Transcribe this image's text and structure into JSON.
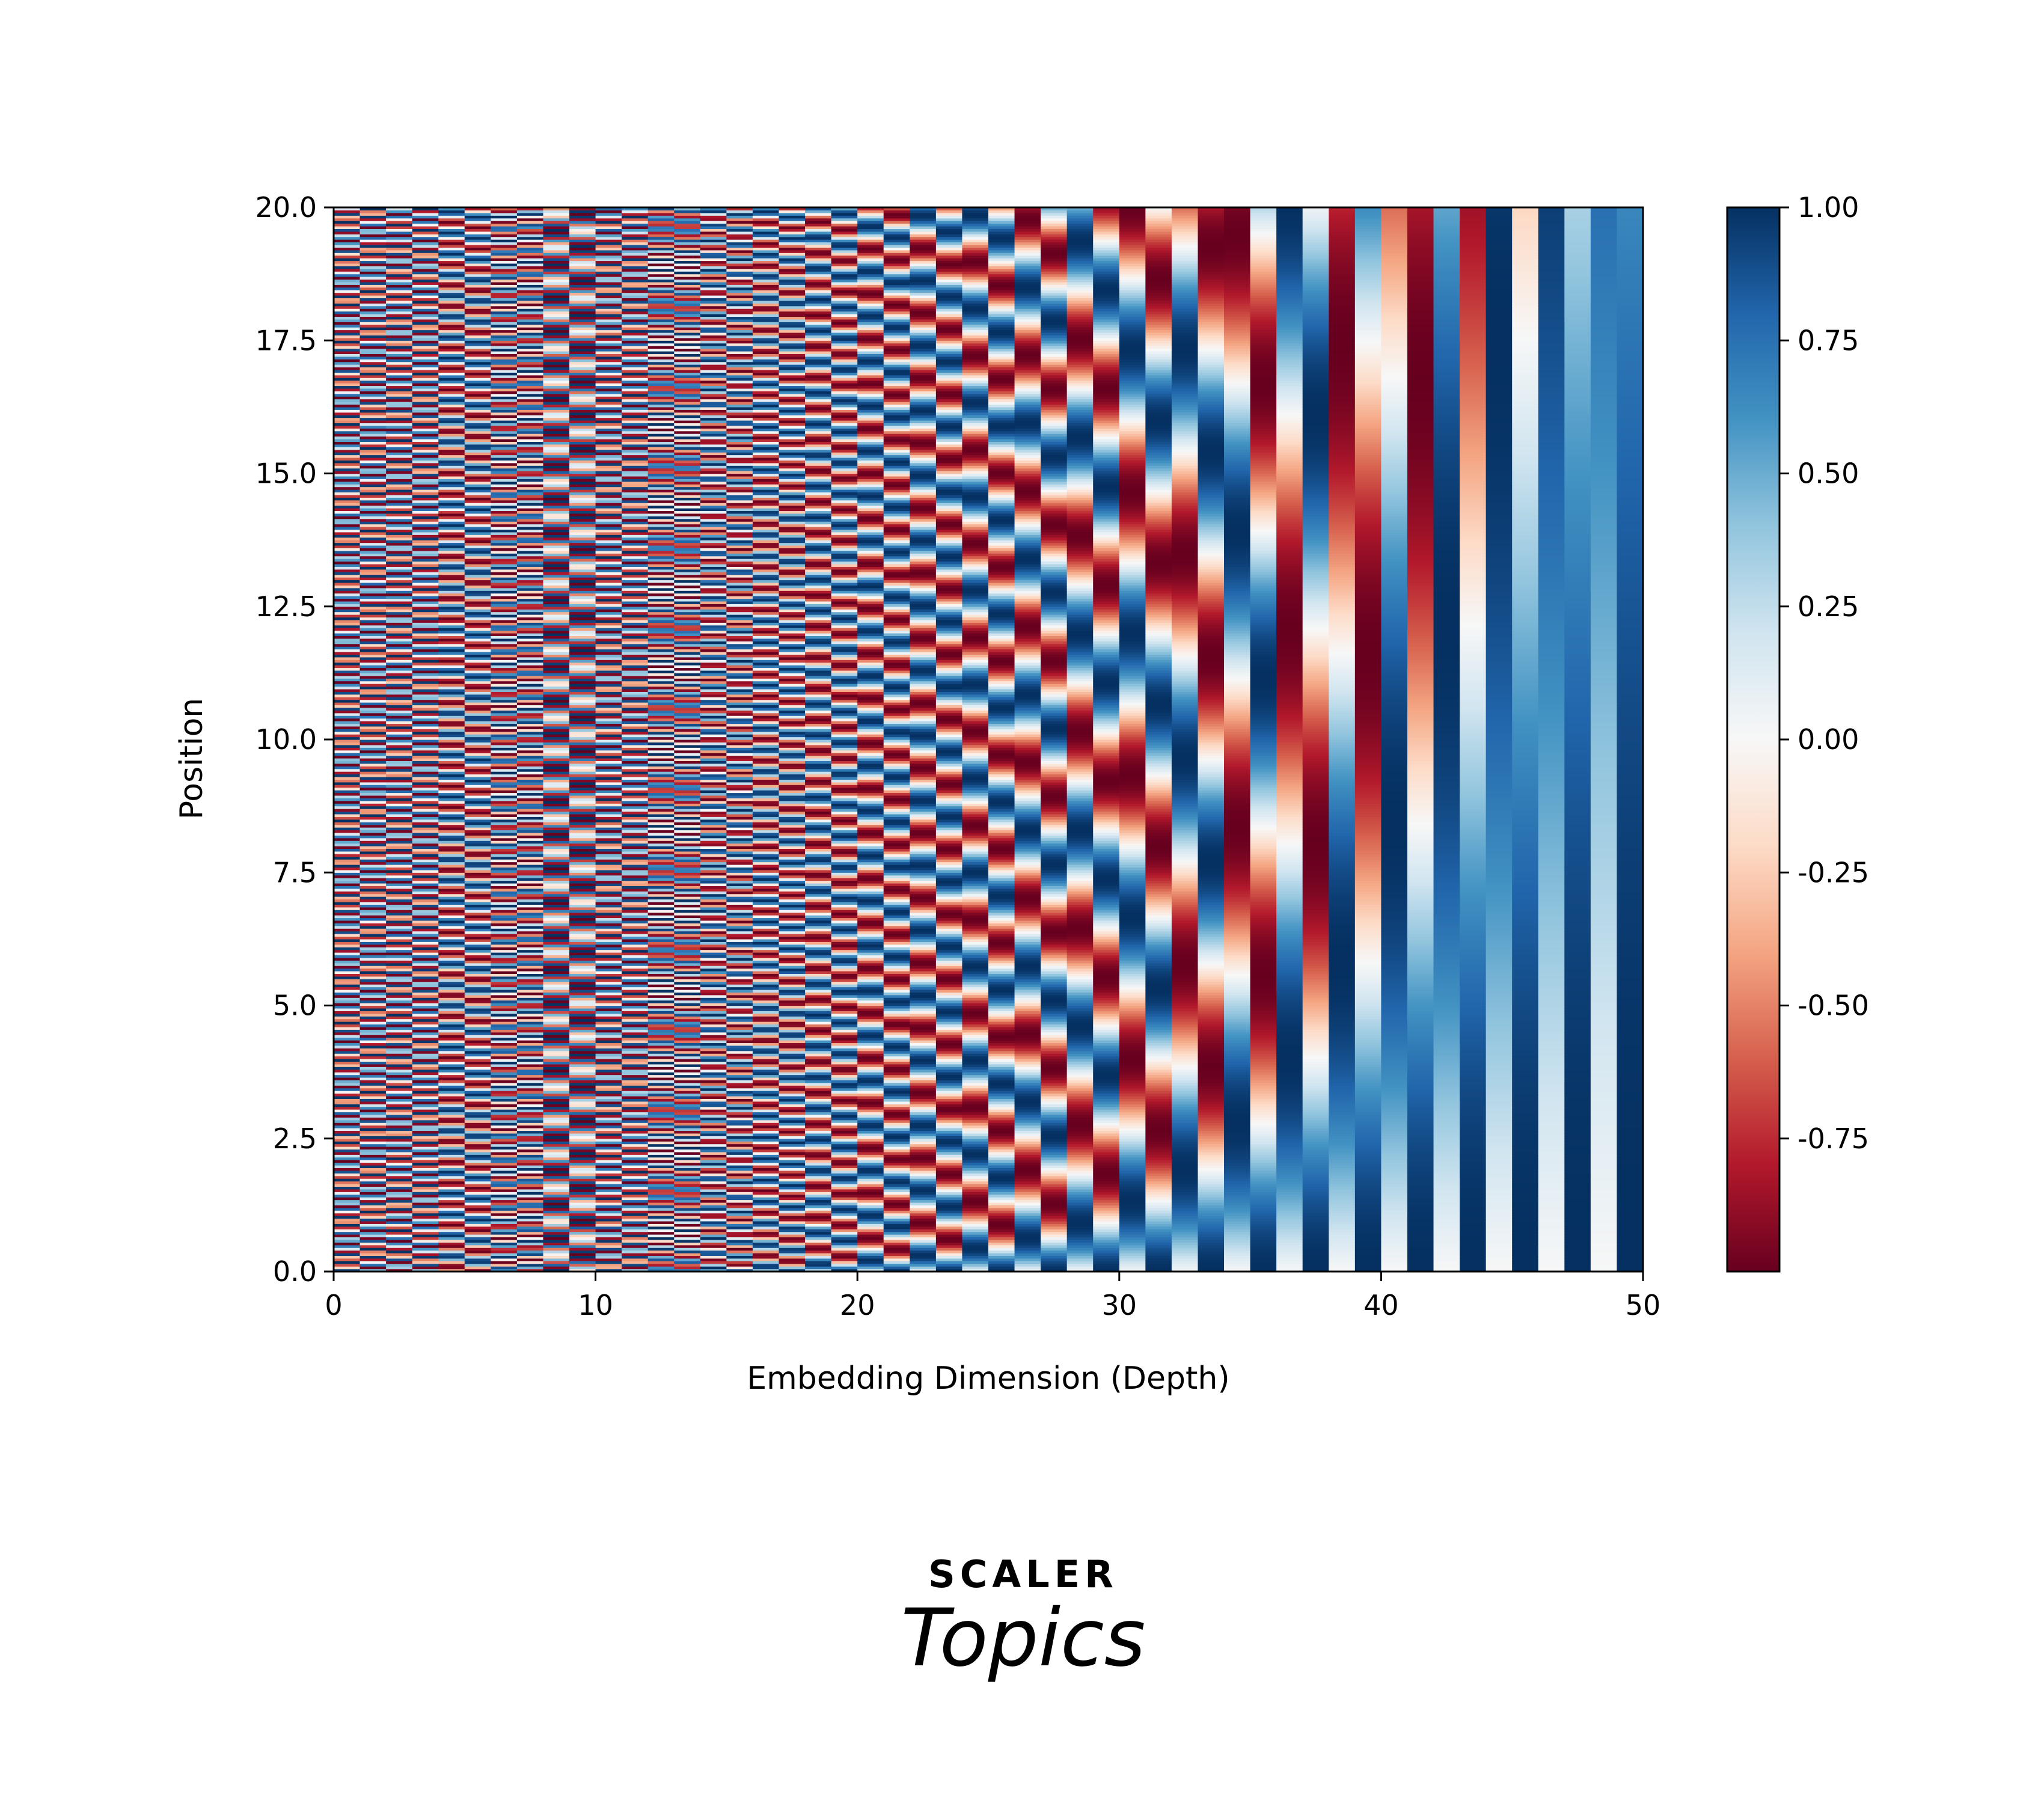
{
  "chart_data": {
    "type": "heatmap",
    "title": "",
    "xlabel": "Embedding Dimension (Depth)",
    "ylabel": "Position",
    "xlim": [
      0,
      50
    ],
    "ylim": [
      0.0,
      20.0
    ],
    "x_ticks": [
      "0",
      "10",
      "20",
      "30",
      "40",
      "50"
    ],
    "x_tick_values": [
      0,
      10,
      20,
      30,
      40,
      50
    ],
    "y_ticks": [
      "0.0",
      "2.5",
      "5.0",
      "7.5",
      "10.0",
      "12.5",
      "15.0",
      "17.5",
      "20.0"
    ],
    "y_tick_values": [
      0,
      2.5,
      5,
      7.5,
      10,
      12.5,
      15,
      17.5,
      20
    ],
    "columns": 50,
    "position_samples": 400,
    "value_formula": "sinusoidal positional encoding: even dims sin(pos / 10000^(2i/d)), odd dims cos(...)",
    "colormap": "RdBu",
    "value_range": [
      -1,
      1
    ],
    "colorbar": {
      "ticks": [
        "1.00",
        "0.75",
        "0.50",
        "0.25",
        "0.00",
        "-0.25",
        "-0.50",
        "-0.75"
      ],
      "tick_values": [
        1.0,
        0.75,
        0.5,
        0.25,
        0.0,
        -0.25,
        -0.5,
        -0.75
      ],
      "colors": [
        "#67001f",
        "#b2182b",
        "#d6604d",
        "#f4a582",
        "#fddbc7",
        "#f7f7f7",
        "#d1e5f0",
        "#92c5de",
        "#4393c3",
        "#2166ac",
        "#053061"
      ]
    }
  },
  "brand": {
    "line1": "SCALER",
    "line2": "Topics",
    "color_line1": "#0f1a2e",
    "color_line2": "#e8337a"
  }
}
